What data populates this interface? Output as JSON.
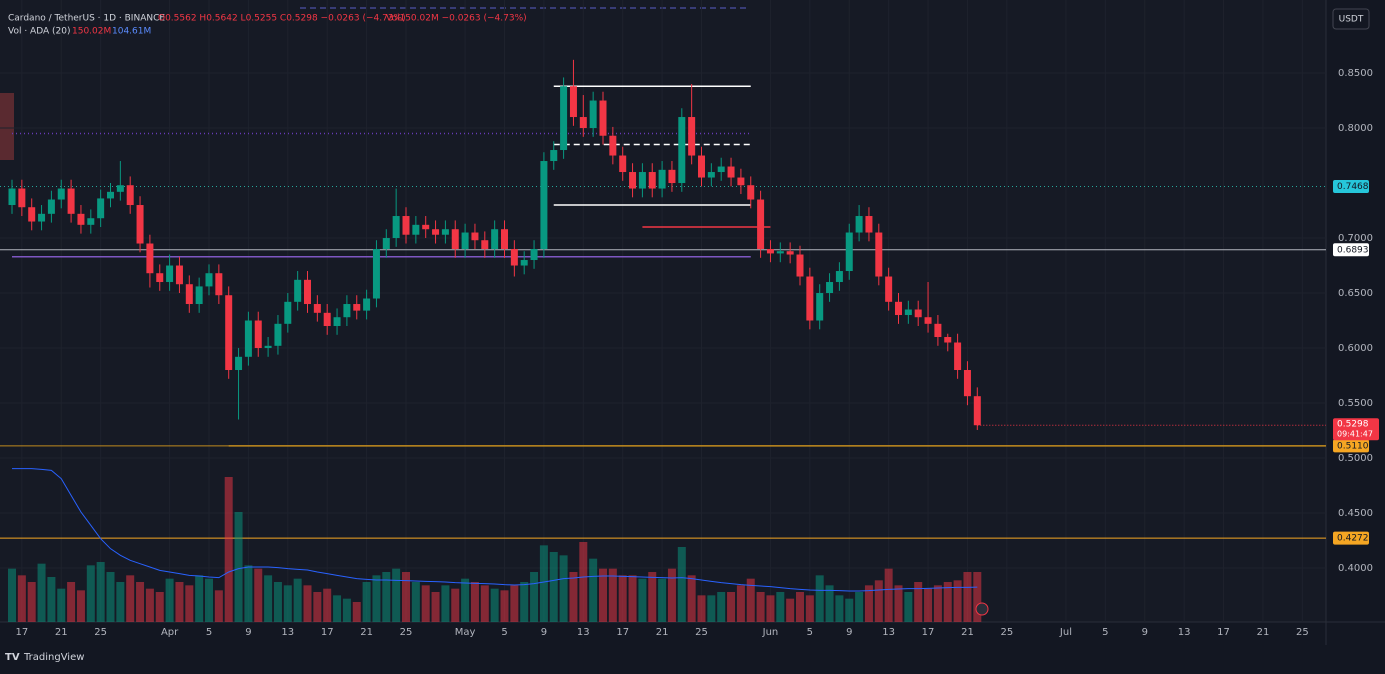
{
  "chart_data": {
    "type": "candlestick",
    "symbol": "Cardano / TetherUS · 1D · BINANCE",
    "ohlc_text": "O0.5562 H0.5642 L0.5255 C0.5298 −0.0263 (−4.73%)",
    "vol_text": "Vol150.02M −0.0263 (−4.73%)",
    "vol_indicator": "Vol · ADA (20)",
    "vol_value": "150.02M",
    "vol_ma_value": "104.61M",
    "currency": "USDT",
    "countdown": "09:41:47",
    "brand": "TradingView",
    "up_color": "#089981",
    "down_color": "#f23645",
    "ma_color": "#2962ff",
    "open": [
      0.73,
      0.745,
      0.728,
      0.715,
      0.722,
      0.735,
      0.745,
      0.722,
      0.712,
      0.718,
      0.736,
      0.742,
      0.748,
      0.73,
      0.695,
      0.668,
      0.66,
      0.675,
      0.658,
      0.64,
      0.656,
      0.668,
      0.648,
      0.58,
      0.592,
      0.625,
      0.6,
      0.602,
      0.622,
      0.642,
      0.662,
      0.64,
      0.632,
      0.62,
      0.628,
      0.64,
      0.634,
      0.645,
      0.69,
      0.7,
      0.72,
      0.703,
      0.712,
      0.708,
      0.703,
      0.708,
      0.69,
      0.705,
      0.698,
      0.69,
      0.708,
      0.69,
      0.675,
      0.68,
      0.69,
      0.77,
      0.78,
      0.838,
      0.81,
      0.8,
      0.825,
      0.793,
      0.775,
      0.76,
      0.745,
      0.76,
      0.745,
      0.762,
      0.75,
      0.81,
      0.775,
      0.755,
      0.76,
      0.765,
      0.755,
      0.748,
      0.735,
      0.69,
      0.686,
      0.688,
      0.685,
      0.665,
      0.625,
      0.65,
      0.66,
      0.67,
      0.705,
      0.72,
      0.705,
      0.665,
      0.642,
      0.63,
      0.635,
      0.628,
      0.622,
      0.61,
      0.605,
      0.58,
      0.5562
    ],
    "high": [
      0.753,
      0.753,
      0.736,
      0.73,
      0.743,
      0.753,
      0.753,
      0.73,
      0.726,
      0.744,
      0.75,
      0.77,
      0.756,
      0.738,
      0.703,
      0.676,
      0.685,
      0.683,
      0.666,
      0.664,
      0.676,
      0.676,
      0.656,
      0.6,
      0.633,
      0.633,
      0.61,
      0.63,
      0.65,
      0.67,
      0.67,
      0.648,
      0.64,
      0.636,
      0.648,
      0.648,
      0.653,
      0.698,
      0.708,
      0.745,
      0.728,
      0.72,
      0.72,
      0.716,
      0.716,
      0.716,
      0.713,
      0.713,
      0.706,
      0.716,
      0.716,
      0.698,
      0.688,
      0.698,
      0.778,
      0.788,
      0.846,
      0.862,
      0.83,
      0.833,
      0.833,
      0.801,
      0.783,
      0.768,
      0.768,
      0.768,
      0.77,
      0.77,
      0.818,
      0.84,
      0.783,
      0.768,
      0.773,
      0.773,
      0.763,
      0.756,
      0.743,
      0.698,
      0.696,
      0.696,
      0.693,
      0.673,
      0.658,
      0.668,
      0.678,
      0.713,
      0.73,
      0.728,
      0.713,
      0.673,
      0.65,
      0.643,
      0.643,
      0.66,
      0.63,
      0.613,
      0.613,
      0.588,
      0.5642
    ],
    "low": [
      0.722,
      0.72,
      0.707,
      0.707,
      0.714,
      0.727,
      0.714,
      0.704,
      0.704,
      0.71,
      0.728,
      0.734,
      0.722,
      0.687,
      0.655,
      0.652,
      0.652,
      0.65,
      0.632,
      0.632,
      0.648,
      0.64,
      0.572,
      0.535,
      0.584,
      0.592,
      0.592,
      0.594,
      0.614,
      0.634,
      0.632,
      0.624,
      0.612,
      0.612,
      0.62,
      0.626,
      0.626,
      0.637,
      0.682,
      0.692,
      0.695,
      0.695,
      0.7,
      0.695,
      0.695,
      0.682,
      0.682,
      0.69,
      0.682,
      0.682,
      0.682,
      0.665,
      0.667,
      0.672,
      0.682,
      0.762,
      0.772,
      0.802,
      0.792,
      0.792,
      0.785,
      0.767,
      0.752,
      0.737,
      0.737,
      0.737,
      0.737,
      0.742,
      0.742,
      0.767,
      0.747,
      0.747,
      0.752,
      0.747,
      0.74,
      0.727,
      0.682,
      0.678,
      0.678,
      0.677,
      0.657,
      0.617,
      0.617,
      0.642,
      0.652,
      0.662,
      0.697,
      0.697,
      0.657,
      0.634,
      0.622,
      0.622,
      0.62,
      0.614,
      0.602,
      0.597,
      0.572,
      0.548,
      0.5255
    ],
    "close": [
      0.745,
      0.728,
      0.715,
      0.722,
      0.735,
      0.745,
      0.722,
      0.712,
      0.718,
      0.736,
      0.742,
      0.748,
      0.73,
      0.695,
      0.668,
      0.66,
      0.675,
      0.658,
      0.64,
      0.656,
      0.668,
      0.648,
      0.58,
      0.592,
      0.625,
      0.6,
      0.602,
      0.622,
      0.642,
      0.662,
      0.64,
      0.632,
      0.62,
      0.628,
      0.64,
      0.634,
      0.645,
      0.69,
      0.7,
      0.72,
      0.703,
      0.712,
      0.708,
      0.703,
      0.708,
      0.69,
      0.705,
      0.698,
      0.69,
      0.708,
      0.69,
      0.675,
      0.68,
      0.69,
      0.77,
      0.78,
      0.838,
      0.81,
      0.8,
      0.825,
      0.793,
      0.775,
      0.76,
      0.745,
      0.76,
      0.745,
      0.762,
      0.75,
      0.81,
      0.775,
      0.755,
      0.76,
      0.765,
      0.755,
      0.748,
      0.735,
      0.69,
      0.686,
      0.688,
      0.685,
      0.665,
      0.625,
      0.65,
      0.66,
      0.67,
      0.705,
      0.72,
      0.705,
      0.665,
      0.642,
      0.63,
      0.635,
      0.628,
      0.622,
      0.61,
      0.605,
      0.58,
      0.5562,
      0.5298
    ],
    "volume": [
      160,
      140,
      120,
      175,
      135,
      100,
      120,
      95,
      170,
      180,
      150,
      120,
      140,
      120,
      100,
      90,
      130,
      120,
      110,
      140,
      130,
      95,
      435,
      330,
      170,
      160,
      140,
      120,
      110,
      130,
      110,
      90,
      100,
      80,
      70,
      60,
      120,
      140,
      150,
      160,
      150,
      120,
      110,
      90,
      110,
      100,
      130,
      120,
      110,
      100,
      95,
      110,
      120,
      150,
      230,
      210,
      200,
      150,
      240,
      190,
      160,
      160,
      140,
      140,
      130,
      150,
      130,
      160,
      225,
      140,
      80,
      80,
      90,
      90,
      110,
      130,
      90,
      80,
      90,
      70,
      90,
      80,
      140,
      110,
      80,
      70,
      90,
      110,
      125,
      160,
      110,
      90,
      120,
      100,
      110,
      120,
      125,
      150,
      150.02
    ],
    "volume_ma": [
      460,
      460,
      460,
      458,
      455,
      430,
      380,
      330,
      290,
      250,
      220,
      200,
      185,
      175,
      165,
      155,
      150,
      145,
      140,
      138,
      135,
      133,
      150,
      160,
      165,
      165,
      165,
      163,
      160,
      158,
      156,
      150,
      145,
      140,
      135,
      130,
      128,
      126,
      126,
      125,
      124,
      123,
      122,
      121,
      120,
      118,
      117,
      116,
      115,
      114,
      112,
      111,
      112,
      115,
      120,
      125,
      130,
      132,
      135,
      137,
      138,
      138,
      137,
      136,
      135,
      134,
      133,
      132,
      133,
      130,
      126,
      122,
      118,
      115,
      112,
      110,
      108,
      106,
      103,
      100,
      98,
      96,
      95,
      95,
      94,
      93,
      93,
      94,
      96,
      98,
      99,
      100,
      100,
      101,
      102,
      103,
      104,
      104,
      104.61
    ],
    "ylim": [
      0.3509,
      0.9164
    ],
    "yticks": [
      {
        "value": 0.85,
        "label": "0.8500"
      },
      {
        "value": 0.8,
        "label": "0.8000"
      },
      {
        "value": 0.7,
        "label": "0.7000"
      },
      {
        "value": 0.65,
        "label": "0.6500"
      },
      {
        "value": 0.6,
        "label": "0.6000"
      },
      {
        "value": 0.55,
        "label": "0.5500"
      },
      {
        "value": 0.5,
        "label": "0.5000"
      },
      {
        "value": 0.45,
        "label": "0.4500"
      },
      {
        "value": 0.4,
        "label": "0.4000"
      }
    ],
    "xticks": [
      {
        "value": 1,
        "label": "17"
      },
      {
        "value": 5,
        "label": "21"
      },
      {
        "value": 9,
        "label": "25"
      },
      {
        "value": 16,
        "label": "Apr"
      },
      {
        "value": 20,
        "label": "5"
      },
      {
        "value": 24,
        "label": "9"
      },
      {
        "value": 28,
        "label": "13"
      },
      {
        "value": 32,
        "label": "17"
      },
      {
        "value": 36,
        "label": "21"
      },
      {
        "value": 40,
        "label": "25"
      },
      {
        "value": 46,
        "label": "May"
      },
      {
        "value": 50,
        "label": "5"
      },
      {
        "value": 54,
        "label": "9"
      },
      {
        "value": 58,
        "label": "13"
      },
      {
        "value": 62,
        "label": "17"
      },
      {
        "value": 66,
        "label": "21"
      },
      {
        "value": 70,
        "label": "25"
      },
      {
        "value": 77,
        "label": "Jun"
      },
      {
        "value": 81,
        "label": "5"
      },
      {
        "value": 85,
        "label": "9"
      },
      {
        "value": 89,
        "label": "13"
      },
      {
        "value": 93,
        "label": "17"
      },
      {
        "value": 97,
        "label": "21"
      },
      {
        "value": 101,
        "label": "25"
      },
      {
        "value": 107,
        "label": "Jul"
      },
      {
        "value": 111,
        "label": "5"
      },
      {
        "value": 115,
        "label": "9"
      },
      {
        "value": 119,
        "label": "13"
      },
      {
        "value": 123,
        "label": "17"
      },
      {
        "value": 127,
        "label": "21"
      },
      {
        "value": 131,
        "label": "25"
      }
    ],
    "grid": true,
    "levels": [
      {
        "value": 0.7468,
        "label": "0.7468",
        "color": "#26a69a",
        "style": "dotted",
        "tag": "#26c6da"
      },
      {
        "value": 0.6893,
        "label": "0.6893",
        "color": "#b2b5be",
        "style": "solid",
        "tag": "#ffffff"
      },
      {
        "value": 0.511,
        "label": "0.5110",
        "color": "#c08a1e",
        "style": "solid",
        "tag": "#f5a623"
      },
      {
        "value": 0.4272,
        "label": "0.4272",
        "color": "#f5a623",
        "style": "solid",
        "tag": "#f5a623"
      }
    ],
    "drawings": [
      {
        "value": 0.838,
        "from": 55,
        "to": 75,
        "color": "#ffffff",
        "style": "solid"
      },
      {
        "value": 0.785,
        "from": 55,
        "to": 75,
        "color": "#ffffff",
        "style": "dashed"
      },
      {
        "value": 0.73,
        "from": 55,
        "to": 75,
        "color": "#ffffff",
        "style": "solid"
      },
      {
        "value": 0.71,
        "from": 64,
        "to": 77,
        "color": "#f23645",
        "style": "solid"
      },
      {
        "value": 0.683,
        "from": 0,
        "to": 75,
        "color": "#7e57c2",
        "style": "solid"
      },
      {
        "value": 0.795,
        "from": 0,
        "to": 75,
        "color": "#673ab7",
        "style": "dotted"
      },
      {
        "value": 0.511,
        "from": 22,
        "to": 134,
        "color": "#c08a1e",
        "style": "solid"
      }
    ]
  }
}
